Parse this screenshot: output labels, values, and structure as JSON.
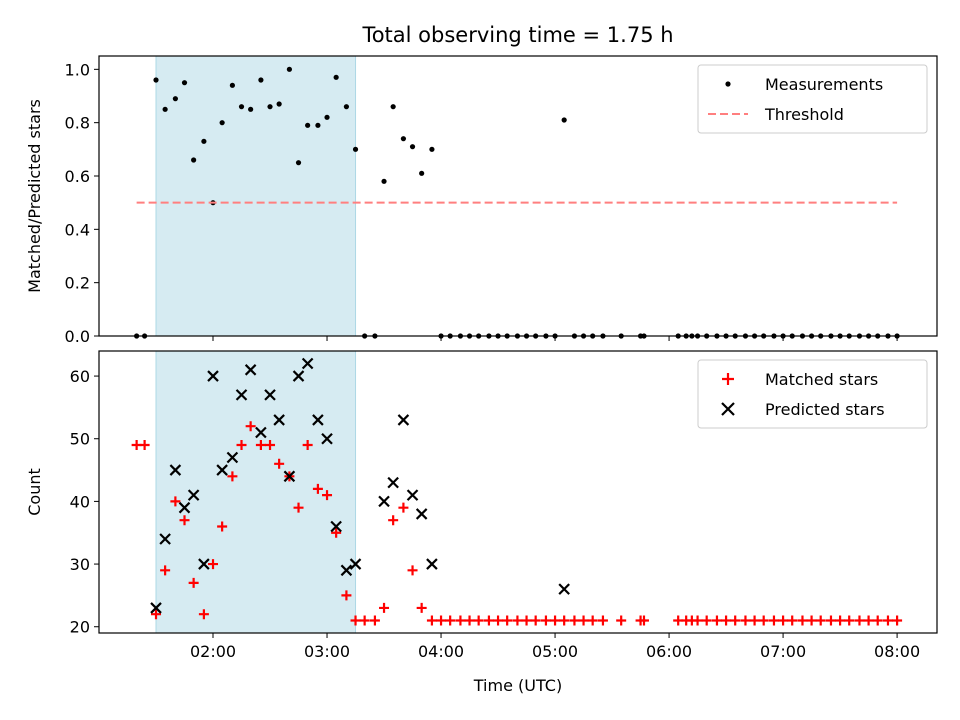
{
  "figure_title": "Total observing time = 1.75 h",
  "colors": {
    "measurement": "#000000",
    "threshold": "#ff7f7f",
    "matched": "#ff0000",
    "predicted": "#000000",
    "highlight": "#add8e6"
  },
  "chart_data": [
    {
      "type": "scatter",
      "ylabel": "Matched/Predicted stars",
      "xlim": [
        1.0,
        8.35
      ],
      "ylim": [
        0,
        1.05
      ],
      "xticks": [
        2,
        3,
        4,
        5,
        6,
        7,
        8
      ],
      "yticks": [
        0.0,
        0.2,
        0.4,
        0.6,
        0.8,
        1.0
      ],
      "ytick_labels": [
        "0.0",
        "0.2",
        "0.4",
        "0.6",
        "0.8",
        "1.0"
      ],
      "highlight_span": [
        1.5,
        3.25
      ],
      "legend_position": "top-right",
      "series": [
        {
          "name": "Measurements",
          "marker": "dot",
          "x": [
            1.33,
            1.4,
            1.5,
            1.58,
            1.67,
            1.75,
            1.83,
            1.92,
            2.0,
            2.08,
            2.17,
            2.25,
            2.33,
            2.42,
            2.5,
            2.58,
            2.67,
            2.75,
            2.83,
            2.92,
            3.0,
            3.08,
            3.17,
            3.25,
            3.33,
            3.42,
            3.5,
            3.58,
            3.67,
            3.75,
            3.83,
            3.92,
            4.0,
            4.08,
            4.17,
            4.25,
            4.33,
            4.42,
            4.5,
            4.58,
            4.67,
            4.75,
            4.83,
            4.92,
            5.0,
            5.08,
            5.17,
            5.25,
            5.33,
            5.42,
            5.58,
            5.75,
            5.78,
            6.08,
            6.15,
            6.2,
            6.25,
            6.33,
            6.42,
            6.5,
            6.58,
            6.67,
            6.75,
            6.83,
            6.92,
            7.0,
            7.08,
            7.17,
            7.25,
            7.33,
            7.42,
            7.5,
            7.58,
            7.67,
            7.75,
            7.83,
            7.92,
            8.0
          ],
          "y": [
            0,
            0,
            0.96,
            0.85,
            0.89,
            0.95,
            0.66,
            0.73,
            0.5,
            0.8,
            0.94,
            0.86,
            0.85,
            0.96,
            0.86,
            0.87,
            1.0,
            0.65,
            0.79,
            0.79,
            0.82,
            0.97,
            0.86,
            0.7,
            0,
            0,
            0.58,
            0.86,
            0.74,
            0.71,
            0.61,
            0.7,
            0,
            0,
            0,
            0,
            0,
            0,
            0,
            0,
            0,
            0,
            0,
            0,
            0,
            0.81,
            0,
            0,
            0,
            0,
            0,
            0,
            0,
            0,
            0,
            0,
            0,
            0,
            0,
            0,
            0,
            0,
            0,
            0,
            0,
            0,
            0,
            0,
            0,
            0,
            0,
            0,
            0,
            0,
            0,
            0,
            0,
            0
          ]
        },
        {
          "name": "Threshold",
          "marker": "dashed-line",
          "x": [
            1.33,
            8.0
          ],
          "y": [
            0.5,
            0.5
          ]
        }
      ]
    },
    {
      "type": "scatter",
      "xlabel": "Time (UTC)",
      "ylabel": "Count",
      "xlim": [
        1.0,
        8.35
      ],
      "ylim": [
        19,
        64
      ],
      "xticks": [
        2,
        3,
        4,
        5,
        6,
        7,
        8
      ],
      "xtick_labels": [
        "02:00",
        "03:00",
        "04:00",
        "05:00",
        "06:00",
        "07:00",
        "08:00"
      ],
      "yticks": [
        20,
        30,
        40,
        50,
        60
      ],
      "ytick_labels": [
        "20",
        "30",
        "40",
        "50",
        "60"
      ],
      "highlight_span": [
        1.5,
        3.25
      ],
      "legend_position": "top-right",
      "series": [
        {
          "name": "Matched stars",
          "marker": "plus",
          "x": [
            1.33,
            1.4,
            1.5,
            1.58,
            1.67,
            1.75,
            1.83,
            1.92,
            2.0,
            2.08,
            2.17,
            2.25,
            2.33,
            2.42,
            2.5,
            2.58,
            2.67,
            2.75,
            2.83,
            2.92,
            3.0,
            3.08,
            3.17,
            3.25,
            3.33,
            3.42,
            3.5,
            3.58,
            3.67,
            3.75,
            3.83,
            3.92,
            4.0,
            4.08,
            4.17,
            4.25,
            4.33,
            4.42,
            4.5,
            4.58,
            4.67,
            4.75,
            4.83,
            4.92,
            5.0,
            5.08,
            5.17,
            5.25,
            5.33,
            5.42,
            5.58,
            5.75,
            5.78,
            6.08,
            6.15,
            6.2,
            6.25,
            6.33,
            6.42,
            6.5,
            6.58,
            6.67,
            6.75,
            6.83,
            6.92,
            7.0,
            7.08,
            7.17,
            7.25,
            7.33,
            7.42,
            7.5,
            7.58,
            7.67,
            7.75,
            7.83,
            7.92,
            8.0
          ],
          "y": [
            49,
            49,
            22,
            29,
            40,
            37,
            27,
            22,
            30,
            36,
            44,
            49,
            52,
            49,
            49,
            46,
            44,
            39,
            49,
            42,
            41,
            35,
            25,
            21,
            21,
            21,
            23,
            37,
            39,
            29,
            23,
            21,
            21,
            21,
            21,
            21,
            21,
            21,
            21,
            21,
            21,
            21,
            21,
            21,
            21,
            21,
            21,
            21,
            21,
            21,
            21,
            21,
            21,
            21,
            21,
            21,
            21,
            21,
            21,
            21,
            21,
            21,
            21,
            21,
            21,
            21,
            21,
            21,
            21,
            21,
            21,
            21,
            21,
            21,
            21,
            21,
            21,
            21
          ]
        },
        {
          "name": "Predicted stars",
          "marker": "x",
          "x": [
            1.5,
            1.58,
            1.67,
            1.75,
            1.83,
            1.92,
            2.0,
            2.08,
            2.17,
            2.25,
            2.33,
            2.42,
            2.5,
            2.58,
            2.67,
            2.75,
            2.83,
            2.92,
            3.0,
            3.08,
            3.17,
            3.25,
            3.5,
            3.58,
            3.67,
            3.75,
            3.83,
            3.92,
            5.08
          ],
          "y": [
            23,
            34,
            45,
            39,
            41,
            30,
            60,
            45,
            47,
            57,
            61,
            51,
            57,
            53,
            44,
            60,
            62,
            53,
            50,
            36,
            29,
            30,
            40,
            43,
            53,
            41,
            38,
            30,
            26
          ]
        }
      ]
    }
  ]
}
